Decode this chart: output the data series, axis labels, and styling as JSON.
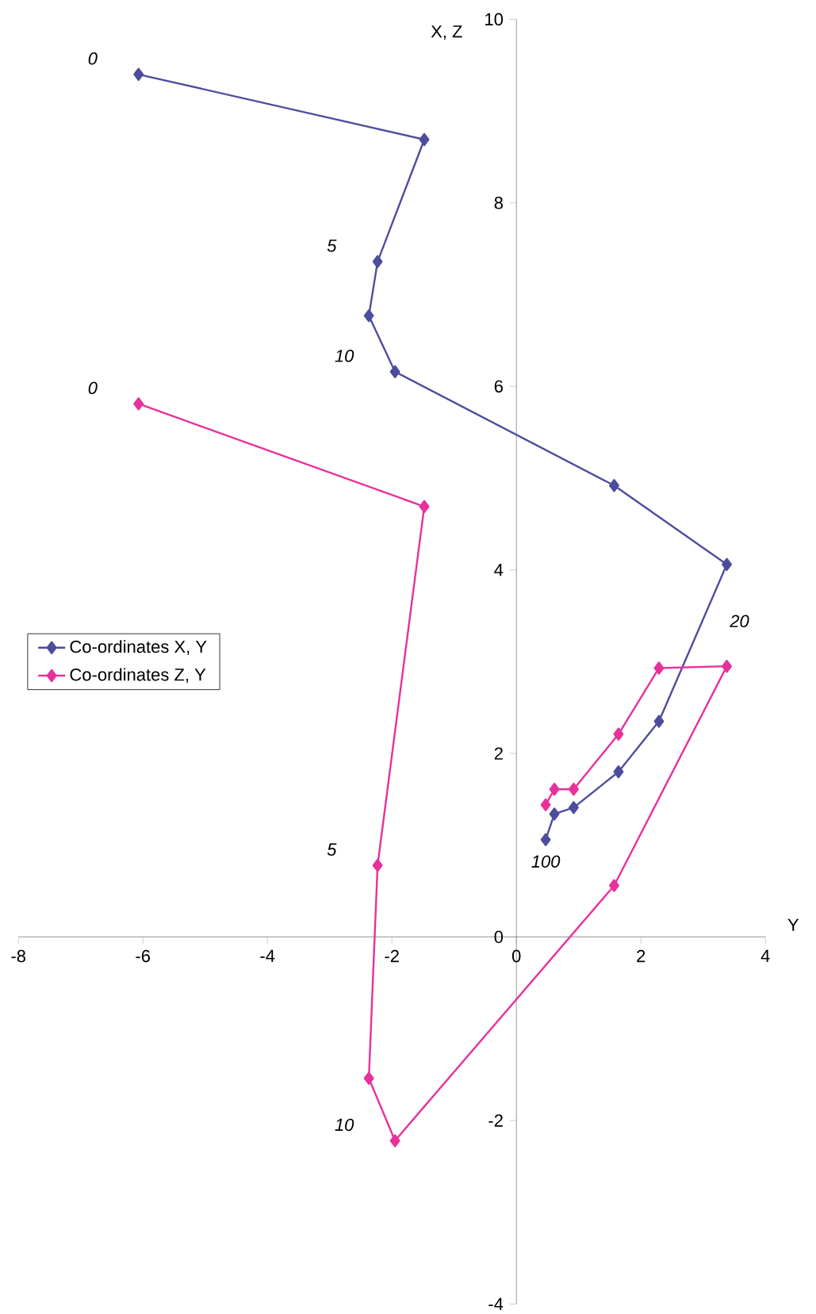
{
  "chart_data": {
    "type": "line",
    "xlabel": "Y",
    "ylabel": "X, Z",
    "x": [
      -6.07,
      -1.48,
      -2.23,
      -2.37,
      -1.95,
      1.57,
      3.38,
      2.29,
      1.64,
      0.92,
      0.61,
      0.47
    ],
    "series": [
      {
        "name": "Co-ordinates X, Y",
        "color": "#4d4d9e",
        "values": [
          9.4,
          8.69,
          7.36,
          6.77,
          6.16,
          4.92,
          4.06,
          2.35,
          1.8,
          1.41,
          1.34,
          1.06
        ]
      },
      {
        "name": "Co-ordinates Z, Y",
        "color": "#e8319a",
        "values": [
          5.81,
          4.69,
          0.78,
          -1.54,
          -2.22,
          0.56,
          2.95,
          2.93,
          2.21,
          1.61,
          1.61,
          1.44
        ]
      }
    ],
    "xlim": [
      -8,
      4
    ],
    "ylim": [
      -4,
      10
    ],
    "xticks": [
      -8,
      -6,
      -4,
      -2,
      0,
      2,
      4
    ],
    "yticks": [
      -4,
      -2,
      0,
      2,
      4,
      6,
      8,
      10
    ],
    "grid": false,
    "legend": "left",
    "marker": "diamond",
    "line_style": "solid",
    "annotations": [
      {
        "text": "0",
        "x": -6.07,
        "y": 9.4
      },
      {
        "text": "5",
        "x": -2.23,
        "y": 7.36
      },
      {
        "text": "10",
        "x": -1.95,
        "y": 6.16
      },
      {
        "text": "20",
        "x": 3.38,
        "y": 4.06
      },
      {
        "text": "100",
        "x": 0.47,
        "y": 1.06
      },
      {
        "text": "0",
        "x": -6.07,
        "y": 5.81
      },
      {
        "text": "5",
        "x": -2.23,
        "y": 0.78
      },
      {
        "text": "10",
        "x": -1.95,
        "y": -2.22
      }
    ]
  }
}
